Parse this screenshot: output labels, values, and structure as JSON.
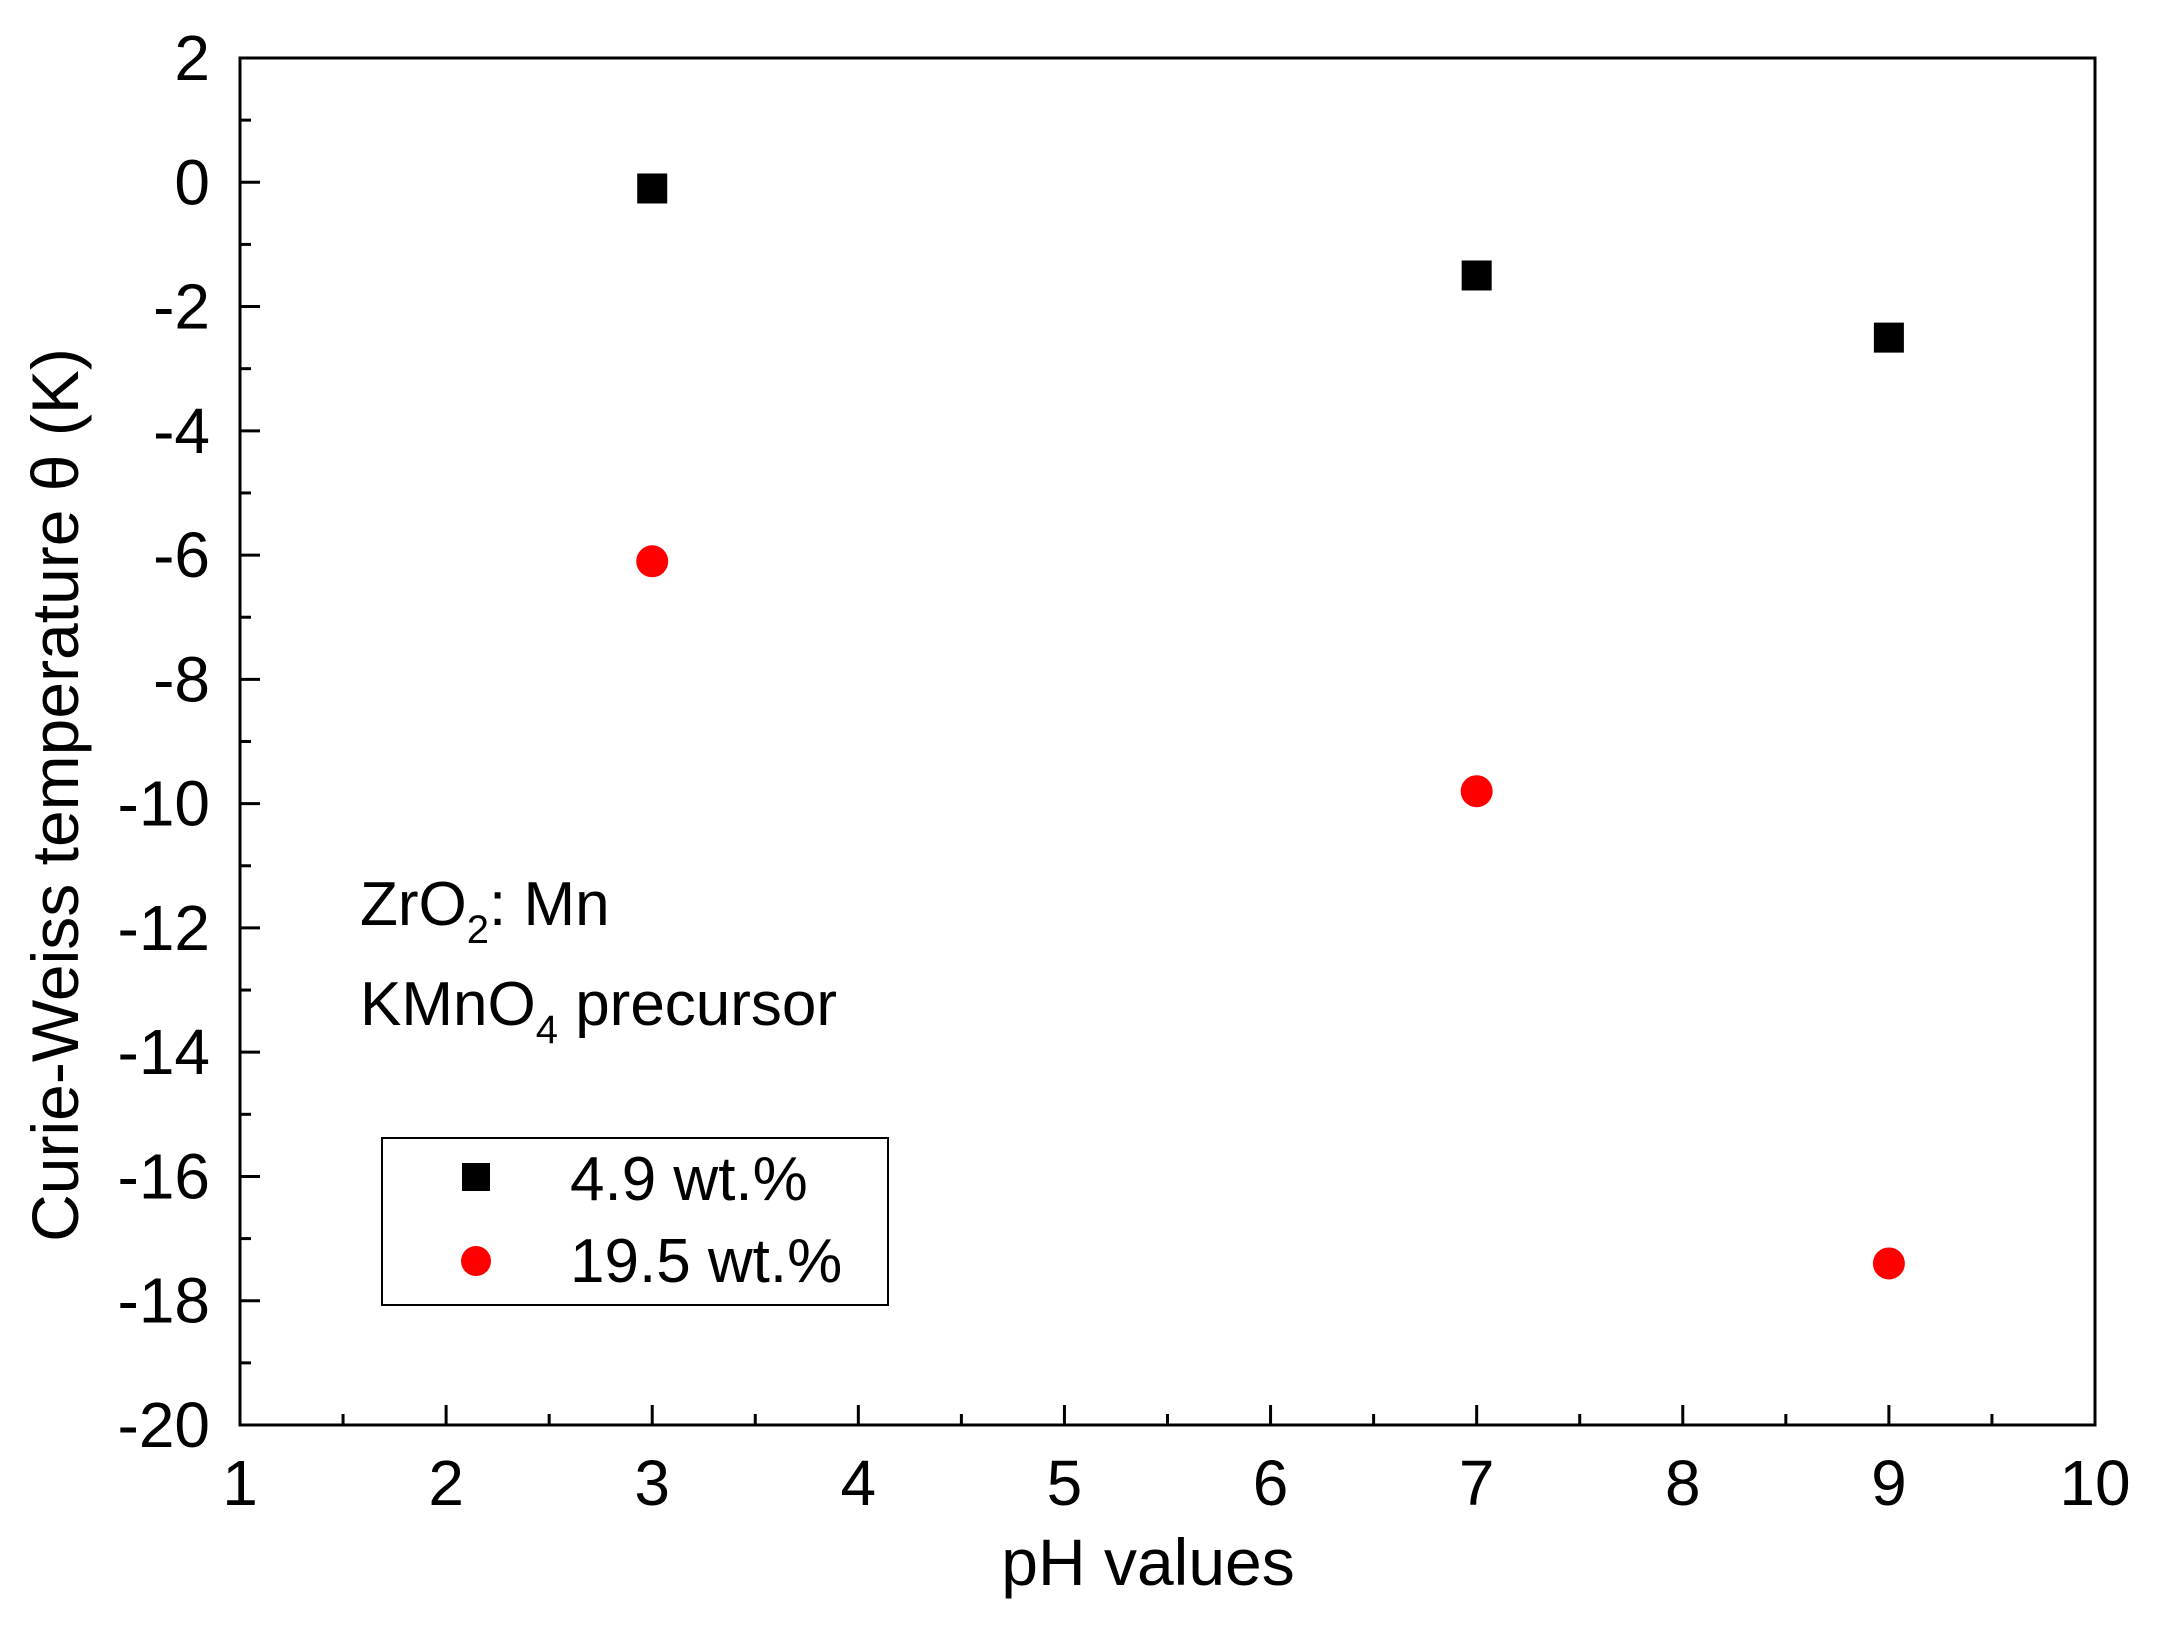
{
  "chart_data": {
    "type": "scatter",
    "title": "",
    "xlabel": "pH values",
    "ylabel_parts": [
      "Curie-Weiss temperature ",
      "θ",
      " (K)"
    ],
    "xlim": [
      1,
      10
    ],
    "ylim": [
      -20,
      2
    ],
    "xticks": [
      1,
      2,
      3,
      4,
      5,
      6,
      7,
      8,
      9,
      10
    ],
    "yticks": [
      2,
      0,
      -2,
      -4,
      -6,
      -8,
      -10,
      -12,
      -14,
      -16,
      -18,
      -20
    ],
    "grid": false,
    "legend_position": "bottom-left",
    "series": [
      {
        "name": "4.9 wt.%",
        "marker": "square",
        "color": "#000000",
        "x": [
          3,
          7,
          9
        ],
        "y": [
          -0.1,
          -1.5,
          -2.5
        ]
      },
      {
        "name": "19.5 wt.%",
        "marker": "circle",
        "color": "#ff0000",
        "x": [
          3,
          7,
          9
        ],
        "y": [
          -6.1,
          -9.8,
          -17.4
        ]
      }
    ],
    "annotations": {
      "line1": {
        "main": "ZrO",
        "sub": "2",
        "rest": ": Mn"
      },
      "line2": {
        "main": "KMnO",
        "sub": "4",
        "rest": " precursor"
      }
    }
  }
}
